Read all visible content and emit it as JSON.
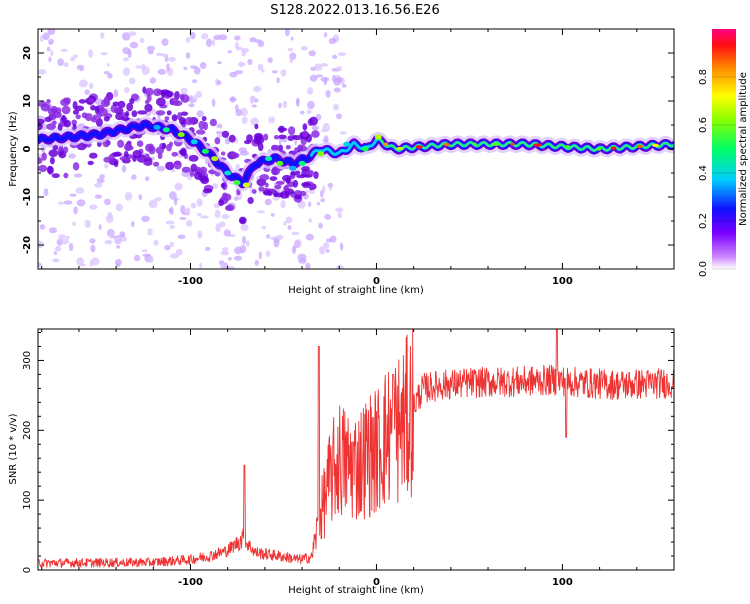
{
  "title": "S128.2022.013.16.56.E26",
  "chart_data": [
    {
      "type": "heatmap",
      "name": "spectrogram",
      "xlabel": "Height of straight line (km)",
      "ylabel": "Frequency (Hz)",
      "xlim": [
        -182,
        160
      ],
      "ylim": [
        -25,
        25
      ],
      "x_ticks": [
        -100,
        0,
        100
      ],
      "x_tick_labels": [
        "-100",
        "0",
        "100"
      ],
      "y_ticks": [
        -20,
        -10,
        0,
        10,
        20
      ],
      "y_tick_labels": [
        "-20",
        "-10",
        "0",
        "10",
        "20"
      ],
      "colorbar": {
        "label": "Normalized spectral amplitude",
        "range": [
          0,
          1
        ],
        "ticks": [
          0,
          0.2,
          0.4,
          0.6,
          0.8
        ],
        "tick_labels": [
          "0.0",
          "0.2",
          "0.4",
          "0.6",
          "0.8"
        ]
      },
      "ridge_frequency_hz": [
        [
          -180,
          2
        ],
        [
          -150,
          3
        ],
        [
          -125,
          5
        ],
        [
          -110,
          4
        ],
        [
          -100,
          2
        ],
        [
          -90,
          -1
        ],
        [
          -80,
          -5
        ],
        [
          -72,
          -7
        ],
        [
          -65,
          -3
        ],
        [
          -55,
          -2
        ],
        [
          -45,
          -3
        ],
        [
          -38,
          -2
        ],
        [
          -30,
          0
        ],
        [
          -20,
          -1
        ],
        [
          -12,
          1
        ],
        [
          -5,
          0
        ],
        [
          0,
          2
        ],
        [
          10,
          0
        ],
        [
          40,
          1
        ],
        [
          80,
          1
        ],
        [
          120,
          0
        ],
        [
          160,
          1
        ]
      ]
    },
    {
      "type": "line",
      "name": "snr",
      "xlabel": "Height of straight line (km)",
      "ylabel": "SNR (10 * v/v)",
      "xlim": [
        -182,
        160
      ],
      "ylim": [
        0,
        345
      ],
      "x_ticks": [
        -100,
        0,
        100
      ],
      "x_tick_labels": [
        "-100",
        "0",
        "100"
      ],
      "y_ticks": [
        0,
        100,
        200,
        300
      ],
      "y_tick_labels": [
        "0",
        "100",
        "200",
        "300"
      ],
      "color": "#ee3333",
      "trend": [
        [
          -182,
          10
        ],
        [
          -120,
          11
        ],
        [
          -100,
          15
        ],
        [
          -90,
          20
        ],
        [
          -80,
          28
        ],
        [
          -72,
          45
        ],
        [
          -65,
          25
        ],
        [
          -52,
          20
        ],
        [
          -42,
          15
        ],
        [
          -35,
          18
        ],
        [
          -30,
          80
        ],
        [
          -25,
          130
        ],
        [
          -20,
          160
        ],
        [
          -15,
          150
        ],
        [
          -10,
          150
        ],
        [
          -5,
          165
        ],
        [
          0,
          170
        ],
        [
          5,
          190
        ],
        [
          10,
          200
        ],
        [
          15,
          210
        ],
        [
          20,
          235
        ],
        [
          25,
          260
        ],
        [
          35,
          265
        ],
        [
          50,
          268
        ],
        [
          80,
          270
        ],
        [
          95,
          272
        ],
        [
          110,
          268
        ],
        [
          130,
          265
        ],
        [
          160,
          268
        ]
      ],
      "peaks": [
        [
          -71,
          150
        ],
        [
          -31,
          320
        ],
        [
          9,
          280
        ],
        [
          97,
          345
        ],
        [
          102,
          190
        ]
      ]
    }
  ]
}
